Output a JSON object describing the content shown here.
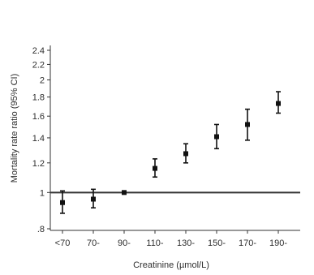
{
  "chart_data": {
    "type": "scatter",
    "title": "",
    "xlabel": "Creatinine (µmol/L)",
    "ylabel": "Mortality rate ratio (95% CI)",
    "scale": "log",
    "ylim": [
      0.78,
      2.55
    ],
    "grid": false,
    "reference_line": 1,
    "categories": [
      "<70",
      "70-",
      "90-",
      "110-",
      "130-",
      "150-",
      "170-",
      "190-"
    ],
    "y_ticks": [
      0.8,
      1,
      1.2,
      1.4,
      1.6,
      1.8,
      2,
      2.2,
      2.4
    ],
    "y_tick_labels": [
      ".8",
      "1",
      "1.2",
      "1.4",
      "1.6",
      "1.8",
      "2",
      "2.2",
      "2.4"
    ],
    "series": [
      {
        "estimate": [
          0.94,
          0.96,
          1.0,
          1.16,
          1.27,
          1.41,
          1.52,
          1.73
        ],
        "ci_low": [
          0.88,
          0.91,
          1.0,
          1.1,
          1.2,
          1.31,
          1.38,
          1.63
        ],
        "ci_high": [
          1.01,
          1.02,
          1.0,
          1.23,
          1.35,
          1.52,
          1.67,
          1.86
        ]
      }
    ],
    "colors": {
      "points": "#111111",
      "errorbars": "#111111",
      "reference_line": "#333333",
      "axis": "#333333",
      "text": "#2e2e2e"
    }
  }
}
